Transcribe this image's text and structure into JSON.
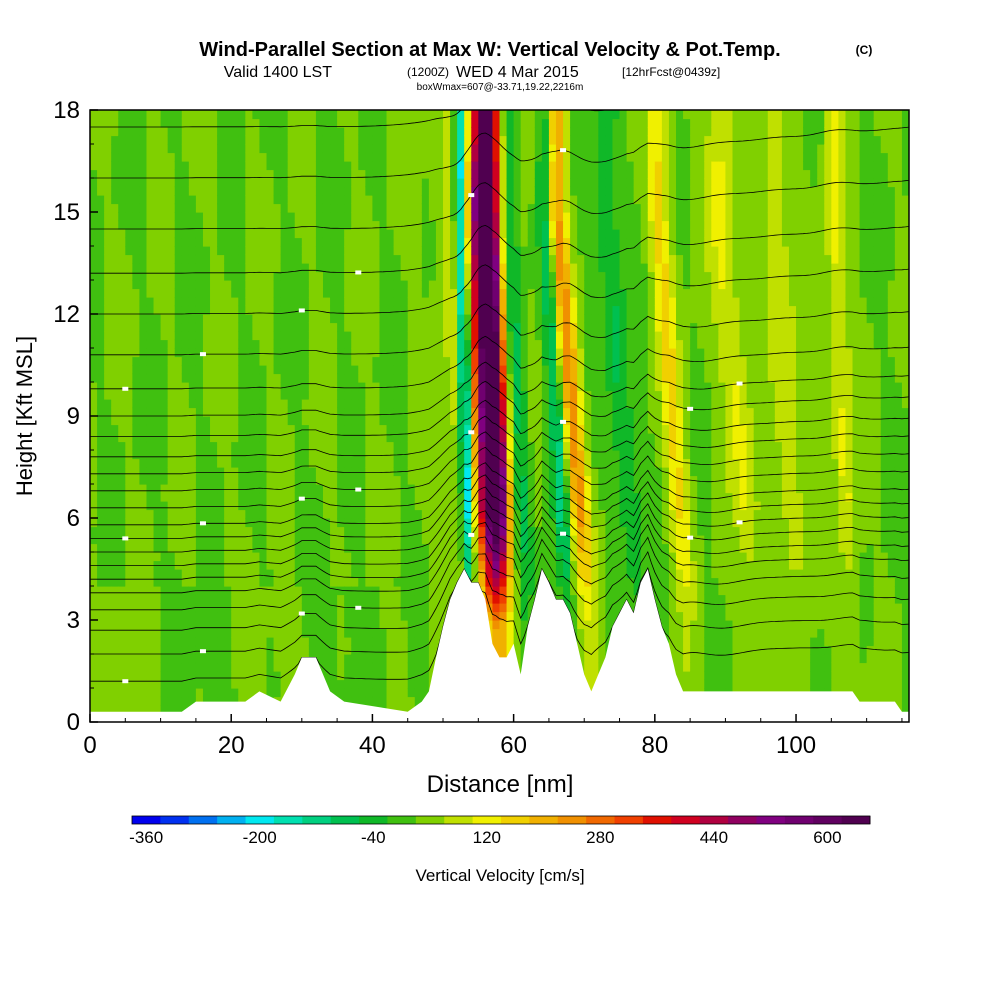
{
  "chart_data": {
    "type": "heatmap",
    "title": "Wind-Parallel Section at Max W: Vertical Velocity & Pot.Temp.",
    "copyright": "(C)",
    "subtitle_main": "Valid 1400 LST",
    "subtitle_utc": "(1200Z)",
    "subtitle_date": "WED 4 Mar 2015",
    "subtitle_fcst": "[12hrFcst@0439z]",
    "box_info": "boxWmax=607@-33.71,19.22,2216m",
    "xlabel": "Distance [nm]",
    "ylabel": "Height [Kft MSL]",
    "xlim": [
      0,
      116
    ],
    "ylim": [
      0,
      18
    ],
    "xticks": [
      0,
      20,
      40,
      60,
      80,
      100
    ],
    "yticks": [
      0,
      3,
      6,
      9,
      12,
      15,
      18
    ],
    "colorbar": {
      "label": "Vertical Velocity [cm/s]",
      "min": -380,
      "max": 640,
      "step": 40,
      "tick_labels": [
        "-360",
        "-200",
        "-40",
        "120",
        "280",
        "440",
        "600"
      ],
      "tick_values": [
        -360,
        -200,
        -40,
        120,
        280,
        440,
        600
      ],
      "colors": [
        "#0000ee",
        "#0030f0",
        "#0070f0",
        "#00b0f0",
        "#00e8f0",
        "#00e0b0",
        "#00d080",
        "#00c050",
        "#10b828",
        "#40c010",
        "#80d000",
        "#c0e000",
        "#f0f000",
        "#f0d000",
        "#f0b000",
        "#f09000",
        "#f06800",
        "#f04000",
        "#e01000",
        "#d00020",
        "#b00040",
        "#900060",
        "#800080",
        "#700070",
        "#600060",
        "#500050"
      ]
    },
    "terrain_kft": [
      [
        0,
        0.3
      ],
      [
        13,
        0.3
      ],
      [
        15,
        0.6
      ],
      [
        22,
        0.6
      ],
      [
        24,
        0.9
      ],
      [
        27,
        0.6
      ],
      [
        29,
        1.4
      ],
      [
        30,
        1.9
      ],
      [
        32,
        1.9
      ],
      [
        33,
        1.4
      ],
      [
        34,
        0.9
      ],
      [
        36,
        0.6
      ],
      [
        45,
        0.3
      ],
      [
        47,
        0.6
      ],
      [
        48,
        0.9
      ],
      [
        49,
        1.9
      ],
      [
        50,
        2.8
      ],
      [
        51,
        3.6
      ],
      [
        52,
        4.1
      ],
      [
        53,
        4.5
      ],
      [
        54,
        4.1
      ],
      [
        55,
        4.1
      ],
      [
        56,
        3.6
      ],
      [
        57,
        2.3
      ],
      [
        58,
        1.9
      ],
      [
        59,
        1.9
      ],
      [
        60,
        2.3
      ],
      [
        61,
        1.4
      ],
      [
        62,
        2.8
      ],
      [
        63,
        3.6
      ],
      [
        64,
        4.5
      ],
      [
        65,
        4.1
      ],
      [
        66,
        3.6
      ],
      [
        67,
        3.6
      ],
      [
        68,
        3.2
      ],
      [
        69,
        2.3
      ],
      [
        70,
        1.4
      ],
      [
        71,
        0.9
      ],
      [
        72,
        1.4
      ],
      [
        73,
        1.9
      ],
      [
        74,
        2.8
      ],
      [
        76,
        3.6
      ],
      [
        77,
        3.2
      ],
      [
        78,
        4.1
      ],
      [
        79,
        4.5
      ],
      [
        80,
        3.6
      ],
      [
        81,
        2.8
      ],
      [
        82,
        2.3
      ],
      [
        83,
        1.4
      ],
      [
        84,
        0.9
      ],
      [
        108,
        0.9
      ],
      [
        109,
        0.6
      ],
      [
        114,
        0.6
      ],
      [
        115,
        0.3
      ],
      [
        116,
        0.3
      ]
    ],
    "updraft_bands": [
      {
        "x_bottom": 58.0,
        "x_top": 56.0,
        "peak": 607,
        "width": 1.8
      },
      {
        "x_bottom": 57.5,
        "x_top": 55.5,
        "peak": 200,
        "width": 4.5
      },
      {
        "x_bottom": 71.0,
        "x_top": 66.0,
        "peak": 220,
        "width": 1.5
      },
      {
        "x_bottom": 85.0,
        "x_top": 80.5,
        "peak": 130,
        "width": 1.5
      },
      {
        "x_bottom": 95.0,
        "x_top": 89.0,
        "peak": 90,
        "width": 2.0
      },
      {
        "x_bottom": 101.0,
        "x_top": 97.0,
        "peak": 70,
        "width": 2.0
      },
      {
        "x_bottom": 108.0,
        "x_top": 105.5,
        "peak": 90,
        "width": 1.5
      }
    ],
    "downdraft_bands": [
      {
        "x_bottom": 54.0,
        "x_top": 52.5,
        "peak": -340,
        "width": 0.9
      },
      {
        "x_bottom": 62.0,
        "x_top": 59.0,
        "peak": -200,
        "width": 1.6
      },
      {
        "x_bottom": 68.0,
        "x_top": 64.5,
        "peak": -150,
        "width": 1.1
      },
      {
        "x_bottom": 78.0,
        "x_top": 73.0,
        "peak": -90,
        "width": 1.6
      }
    ],
    "theta_contour_levels_kft": [
      1.2,
      2.0,
      2.7,
      3.3,
      3.8,
      4.2,
      4.6,
      5.0,
      5.4,
      5.8,
      6.3,
      6.8,
      7.3,
      7.8,
      8.4,
      9.0,
      9.8,
      10.8,
      12.0,
      13.2,
      14.5,
      16.0,
      17.5
    ],
    "series": [
      {
        "name": "Vertical Velocity (color fill)",
        "units": "cm/s"
      },
      {
        "name": "Potential Temperature (contours)",
        "units": "K"
      }
    ]
  }
}
